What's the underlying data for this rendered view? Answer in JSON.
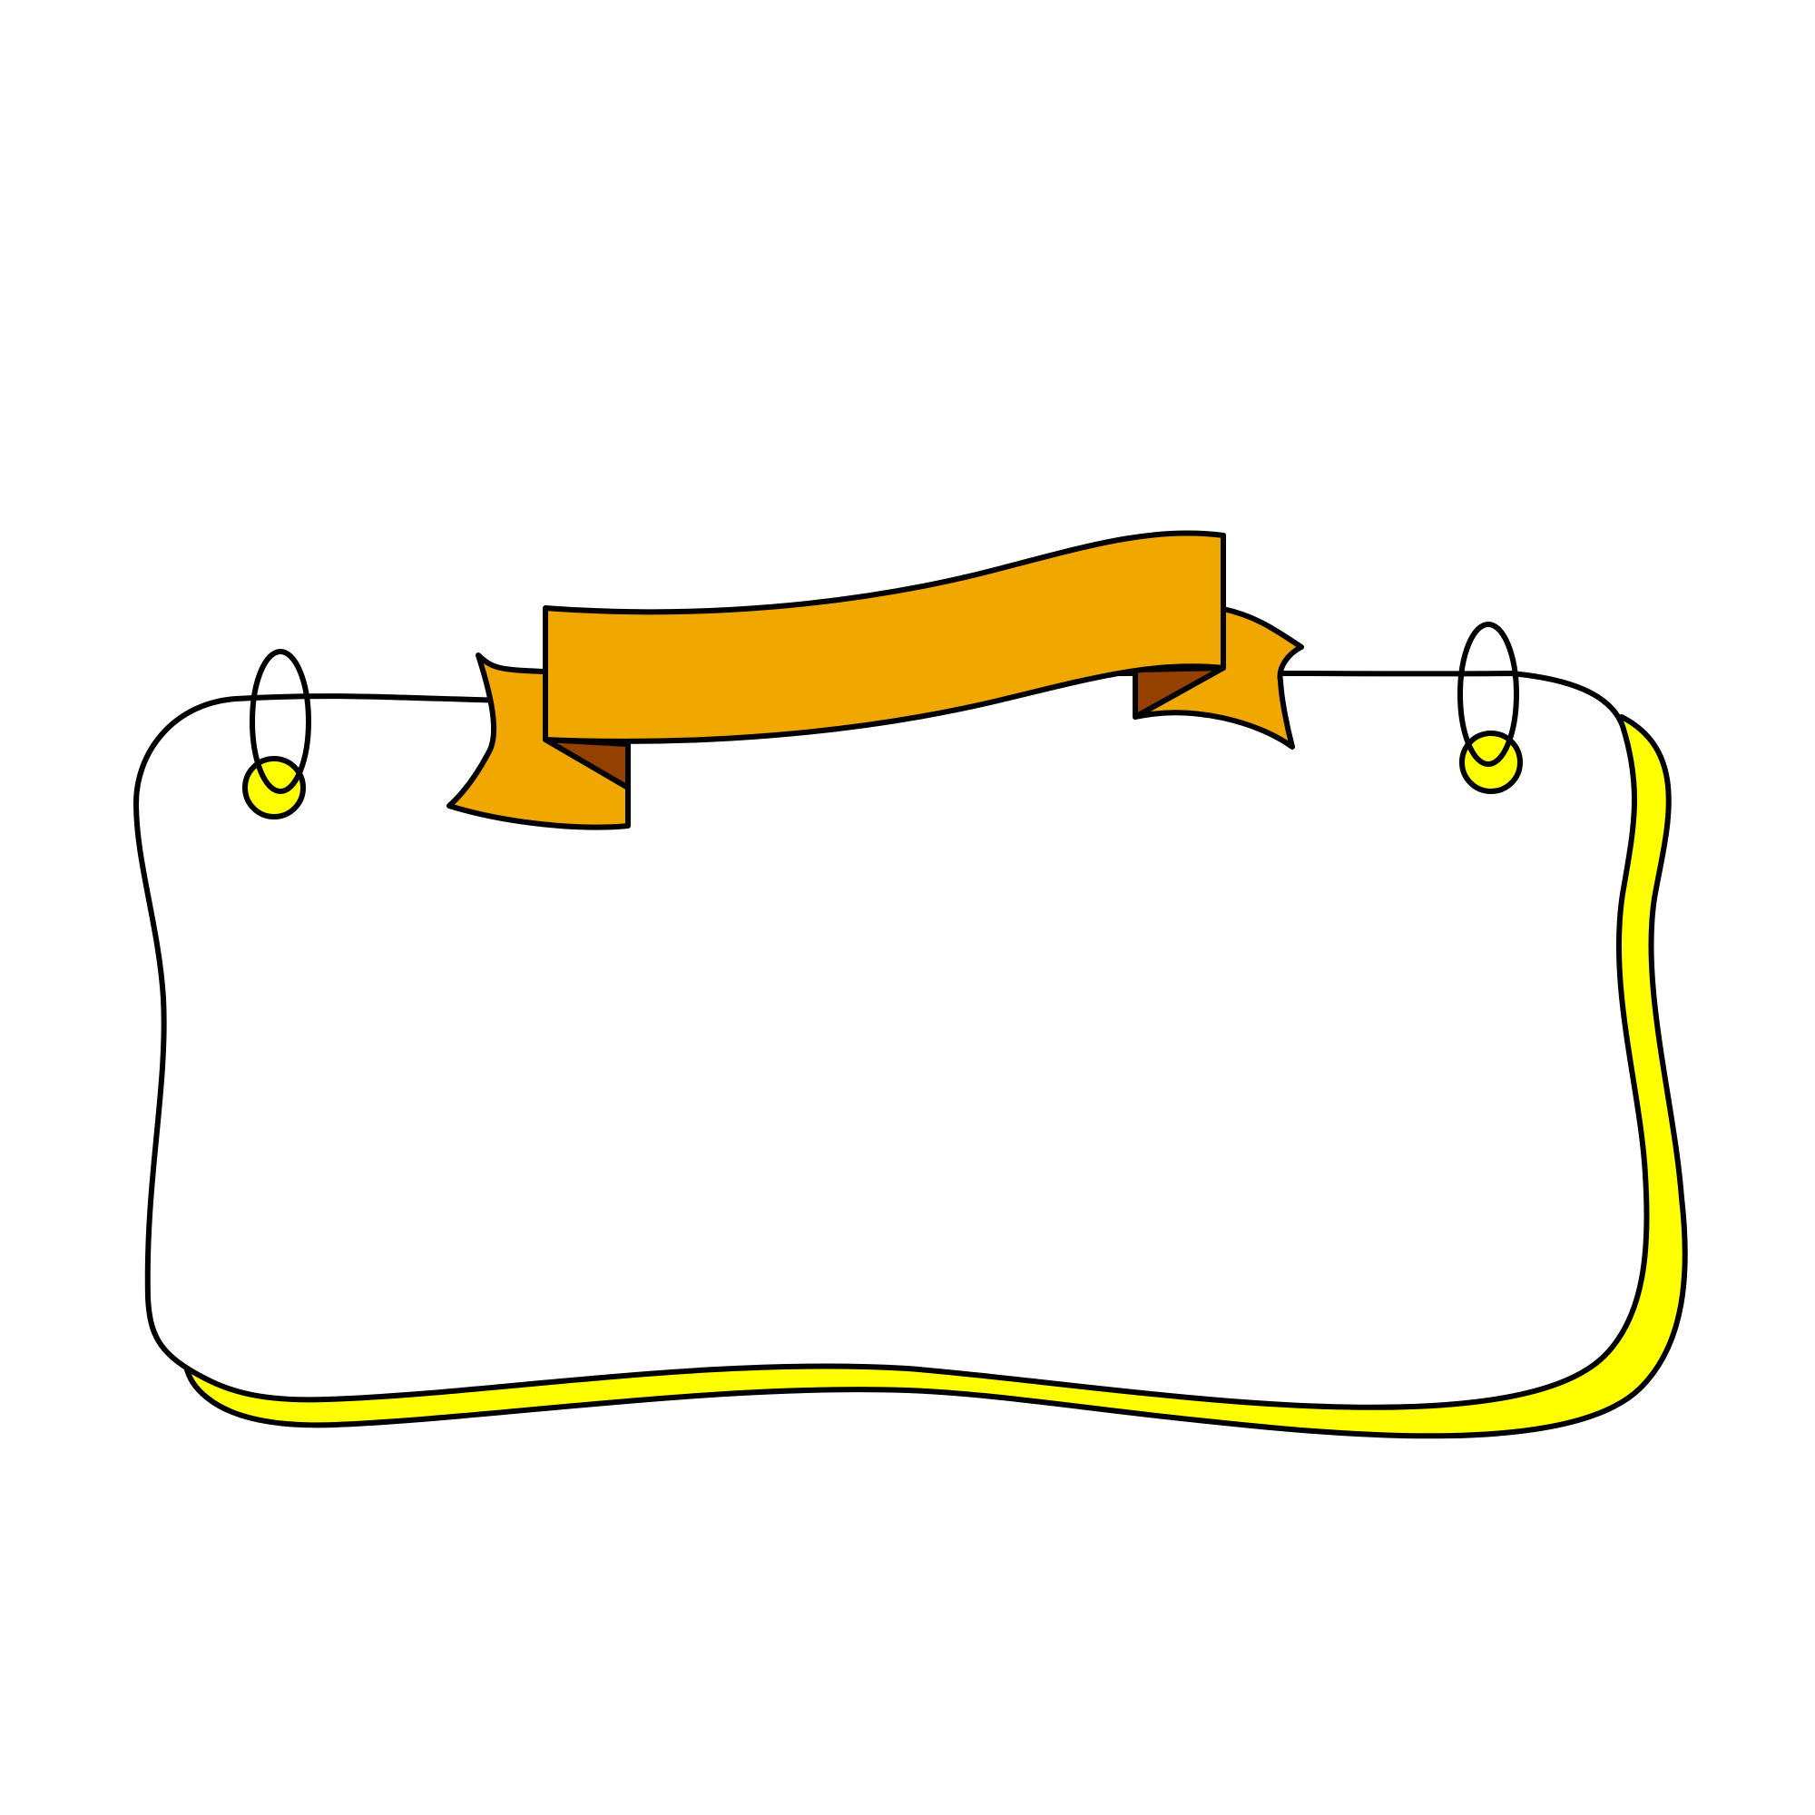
{
  "illustration": {
    "subject": "hanging-sign-banner",
    "colors": {
      "background": "#ffffff",
      "outline": "#000000",
      "board": "#ffffff",
      "board_shadow": "#ffff00",
      "ring_fill": "#ffff00",
      "ribbon": "#f0a800",
      "ribbon_fold": "#944000"
    }
  }
}
